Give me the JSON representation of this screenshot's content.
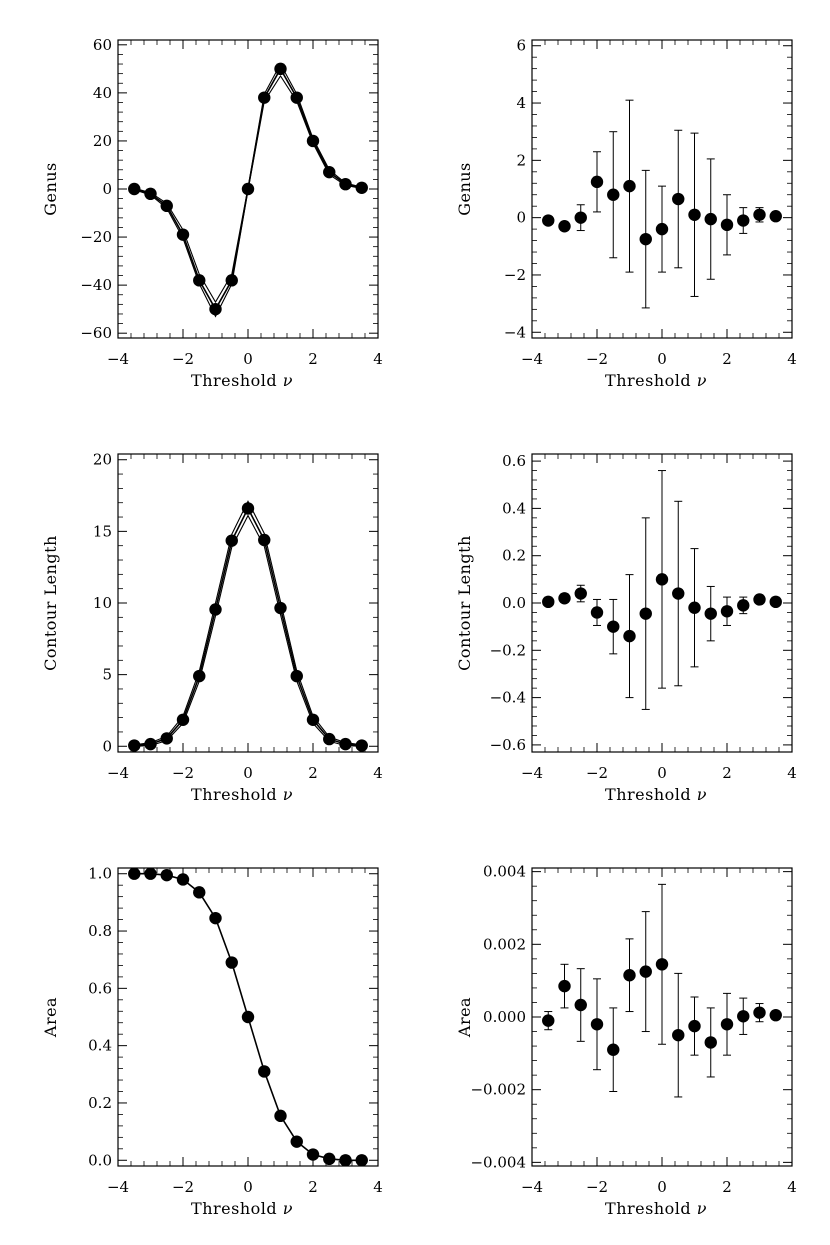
{
  "figure": {
    "description_free": true
  },
  "chart_data": [
    {
      "id": "genus",
      "type": "line",
      "xlabel": "Threshold ν",
      "ylabel": "Genus",
      "xlim": [
        -4,
        4
      ],
      "ylim": [
        -62,
        62
      ],
      "xticks": [
        "-4",
        "-2",
        "0",
        "2",
        "4"
      ],
      "xtick_values": [
        -4,
        -2,
        0,
        2,
        4
      ],
      "yticks": [
        "-60",
        "-40",
        "-20",
        "0",
        "20",
        "40",
        "60"
      ],
      "ytick_values": [
        -60,
        -40,
        -20,
        0,
        20,
        40,
        60
      ],
      "x": [
        -3.5,
        -3.0,
        -2.5,
        -2.0,
        -1.5,
        -1.0,
        -0.5,
        0.0,
        0.5,
        1.0,
        1.5,
        2.0,
        2.5,
        3.0,
        3.5
      ],
      "series": [
        {
          "name": "points",
          "values": [
            0,
            -2,
            -7,
            -19,
            -38,
            -50,
            -38,
            0,
            38,
            50,
            38,
            20,
            7,
            2,
            0.5
          ]
        },
        {
          "name": "upper band",
          "values": [
            0.3,
            -1.5,
            -6,
            -17,
            -35.5,
            -47,
            -35.5,
            0.5,
            39.5,
            52,
            39.5,
            21,
            8,
            2.5,
            0.8
          ]
        },
        {
          "name": "lower band",
          "values": [
            -0.3,
            -2.5,
            -8,
            -20.5,
            -39.5,
            -53,
            -39.5,
            -0.5,
            36.5,
            47,
            36.5,
            19,
            6,
            1.5,
            0.2
          ]
        }
      ]
    },
    {
      "id": "genus-residual",
      "type": "scatter",
      "xlabel": "Threshold ν",
      "ylabel": "Genus",
      "xlim": [
        -4,
        4
      ],
      "ylim": [
        -4.2,
        6.2
      ],
      "xticks": [
        "-4",
        "-2",
        "0",
        "2",
        "4"
      ],
      "xtick_values": [
        -4,
        -2,
        0,
        2,
        4
      ],
      "yticks": [
        "-4",
        "-2",
        "0",
        "2",
        "4",
        "6"
      ],
      "ytick_values": [
        -4,
        -2,
        0,
        2,
        4,
        6
      ],
      "x": [
        -3.5,
        -3.0,
        -2.5,
        -2.0,
        -1.5,
        -1.0,
        -0.5,
        0.0,
        0.5,
        1.0,
        1.5,
        2.0,
        2.5,
        3.0,
        3.5
      ],
      "values": [
        -0.1,
        -0.3,
        0.0,
        1.25,
        0.8,
        1.1,
        -0.75,
        -0.4,
        0.65,
        0.1,
        -0.05,
        -0.25,
        -0.1,
        0.1,
        0.05
      ],
      "errors": [
        0.1,
        0.15,
        0.45,
        1.05,
        2.2,
        3.0,
        2.4,
        1.5,
        2.4,
        2.85,
        2.1,
        1.05,
        0.45,
        0.25,
        0.1
      ]
    },
    {
      "id": "contour-length",
      "type": "line",
      "xlabel": "Threshold ν",
      "ylabel": "Contour Length",
      "xlim": [
        -4,
        4
      ],
      "ylim": [
        -0.4,
        20.4
      ],
      "xticks": [
        "-4",
        "-2",
        "0",
        "2",
        "4"
      ],
      "xtick_values": [
        -4,
        -2,
        0,
        2,
        4
      ],
      "yticks": [
        "0",
        "5",
        "10",
        "15",
        "20"
      ],
      "ytick_values": [
        0,
        5,
        10,
        15,
        20
      ],
      "x": [
        -3.5,
        -3.0,
        -2.5,
        -2.0,
        -1.5,
        -1.0,
        -0.5,
        0.0,
        0.5,
        1.0,
        1.5,
        2.0,
        2.5,
        3.0,
        3.5
      ],
      "series": [
        {
          "name": "points",
          "values": [
            0.05,
            0.15,
            0.55,
            1.85,
            4.9,
            9.55,
            14.35,
            16.6,
            14.4,
            9.65,
            4.9,
            1.85,
            0.5,
            0.15,
            0.05
          ]
        },
        {
          "name": "upper band",
          "values": [
            0.1,
            0.25,
            0.7,
            2.1,
            5.25,
            10.0,
            14.8,
            17.1,
            14.85,
            10.1,
            5.25,
            2.1,
            0.65,
            0.25,
            0.1
          ]
        },
        {
          "name": "lower band",
          "values": [
            0.0,
            0.05,
            0.4,
            1.6,
            4.55,
            9.1,
            13.9,
            16.1,
            13.95,
            9.2,
            4.55,
            1.6,
            0.35,
            0.05,
            0.0
          ]
        }
      ]
    },
    {
      "id": "contour-length-residual",
      "type": "scatter",
      "xlabel": "Threshold ν",
      "ylabel": "Contour Length",
      "xlim": [
        -4,
        4
      ],
      "ylim": [
        -0.63,
        0.63
      ],
      "xticks": [
        "-4",
        "-2",
        "0",
        "2",
        "4"
      ],
      "xtick_values": [
        -4,
        -2,
        0,
        2,
        4
      ],
      "yticks": [
        "-0.6",
        "-0.4",
        "-0.2",
        "0.0",
        "0.2",
        "0.4",
        "0.6"
      ],
      "ytick_values": [
        -0.6,
        -0.4,
        -0.2,
        0.0,
        0.2,
        0.4,
        0.6
      ],
      "x": [
        -3.5,
        -3.0,
        -2.5,
        -2.0,
        -1.5,
        -1.0,
        -0.5,
        0.0,
        0.5,
        1.0,
        1.5,
        2.0,
        2.5,
        3.0,
        3.5
      ],
      "values": [
        0.005,
        0.02,
        0.04,
        -0.04,
        -0.1,
        -0.14,
        -0.045,
        0.1,
        0.04,
        -0.02,
        -0.045,
        -0.035,
        -0.01,
        0.015,
        0.005
      ],
      "errors": [
        0.01,
        0.015,
        0.035,
        0.055,
        0.115,
        0.26,
        0.405,
        0.46,
        0.39,
        0.25,
        0.115,
        0.06,
        0.035,
        0.015,
        0.01
      ]
    },
    {
      "id": "area",
      "type": "line",
      "xlabel": "Threshold ν",
      "ylabel": "Area",
      "xlim": [
        -4,
        4
      ],
      "ylim": [
        -0.02,
        1.02
      ],
      "xticks": [
        "-4",
        "-2",
        "0",
        "2",
        "4"
      ],
      "xtick_values": [
        -4,
        -2,
        0,
        2,
        4
      ],
      "yticks": [
        "0.0",
        "0.2",
        "0.4",
        "0.6",
        "0.8",
        "1.0"
      ],
      "ytick_values": [
        0.0,
        0.2,
        0.4,
        0.6,
        0.8,
        1.0
      ],
      "x": [
        -3.5,
        -3.0,
        -2.5,
        -2.0,
        -1.5,
        -1.0,
        -0.5,
        0.0,
        0.5,
        1.0,
        1.5,
        2.0,
        2.5,
        3.0,
        3.5
      ],
      "series": [
        {
          "name": "points",
          "values": [
            1.0,
            1.0,
            0.995,
            0.98,
            0.935,
            0.845,
            0.69,
            0.5,
            0.31,
            0.155,
            0.065,
            0.02,
            0.005,
            0.0,
            0.0
          ]
        }
      ]
    },
    {
      "id": "area-residual",
      "type": "scatter",
      "xlabel": "Threshold ν",
      "ylabel": "Area",
      "xlim": [
        -4,
        4
      ],
      "ylim": [
        -0.0041,
        0.0041
      ],
      "xticks": [
        "-4",
        "-2",
        "0",
        "2",
        "4"
      ],
      "xtick_values": [
        -4,
        -2,
        0,
        2,
        4
      ],
      "yticks": [
        "-0.004",
        "-0.002",
        "0.000",
        "0.002",
        "0.004"
      ],
      "ytick_values": [
        -0.004,
        -0.002,
        0.0,
        0.002,
        0.004
      ],
      "x": [
        -3.5,
        -3.0,
        -2.5,
        -2.0,
        -1.5,
        -1.0,
        -0.5,
        0.0,
        0.5,
        1.0,
        1.5,
        2.0,
        2.5,
        3.0,
        3.5
      ],
      "values": [
        -0.0001,
        0.00085,
        0.00033,
        -0.0002,
        -0.0009,
        0.00115,
        0.00125,
        0.00145,
        -0.0005,
        -0.00025,
        -0.0007,
        -0.0002,
        2e-05,
        0.00012,
        5e-05
      ],
      "errors": [
        0.00025,
        0.0006,
        0.001,
        0.00125,
        0.00115,
        0.001,
        0.00165,
        0.0022,
        0.0017,
        0.0008,
        0.00095,
        0.00085,
        0.0005,
        0.00025,
        0.0001
      ]
    }
  ]
}
